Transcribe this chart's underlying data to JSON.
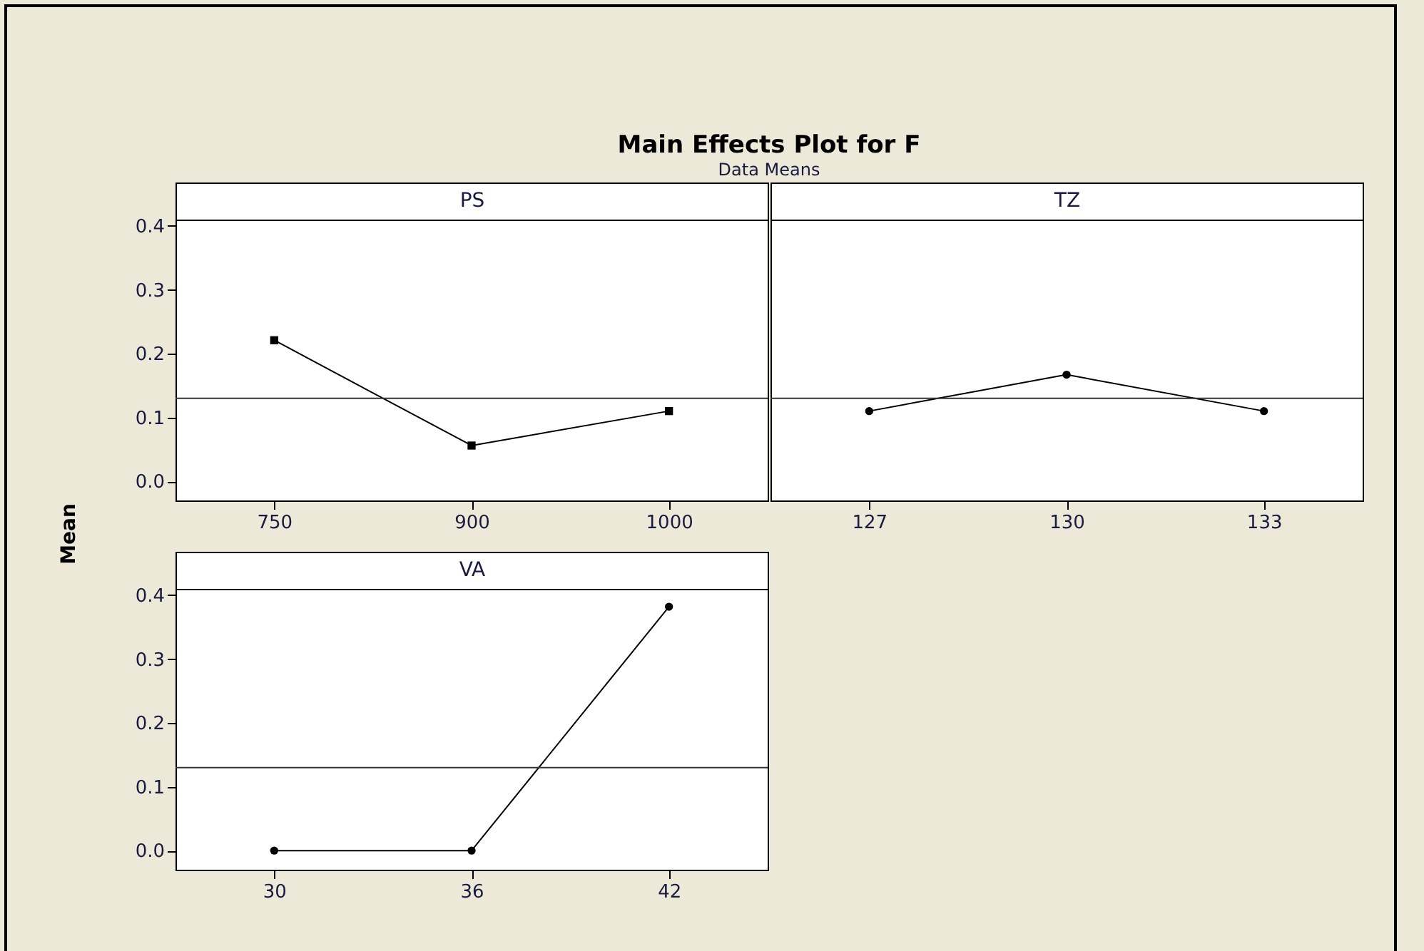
{
  "chart_data": [
    {
      "type": "other",
      "title": "Main Effects Plot for F",
      "subtitle": "Data Means"
    },
    {
      "type": "line",
      "title": "PS",
      "ylabel": "Mean",
      "categories": [
        "750",
        "900",
        "1000"
      ],
      "values": [
        0.221,
        0.056,
        0.11
      ],
      "color": "#000000",
      "marker": "square",
      "ylim": [
        -0.03,
        0.41
      ],
      "yticks": [
        {
          "value": 0,
          "label": "0.0"
        },
        0.1,
        0.2,
        0.3,
        0.4
      ],
      "ref_lines": [
        {
          "axis": "y",
          "value": 0.13
        }
      ]
    },
    {
      "type": "line",
      "title": "TZ",
      "categories": [
        "127",
        "130",
        "133"
      ],
      "values": [
        0.11,
        0.167,
        0.11
      ],
      "color": "#000000",
      "marker": "circle",
      "ylim": [
        -0.03,
        0.41
      ],
      "tick_labels": "x",
      "ref_lines": [
        {
          "axis": "y",
          "value": 0.13
        }
      ]
    },
    {
      "type": "line",
      "title": "VA",
      "categories": [
        "30",
        "36",
        "42"
      ],
      "values": [
        0.0,
        0.0,
        0.382
      ],
      "color": "#000000",
      "marker": "circle",
      "ylim": [
        -0.03,
        0.41
      ],
      "yticks": [
        {
          "value": 0,
          "label": "0.0"
        },
        0.1,
        0.2,
        0.3,
        0.4
      ],
      "ref_lines": [
        {
          "axis": "y",
          "value": 0.13
        }
      ]
    }
  ]
}
